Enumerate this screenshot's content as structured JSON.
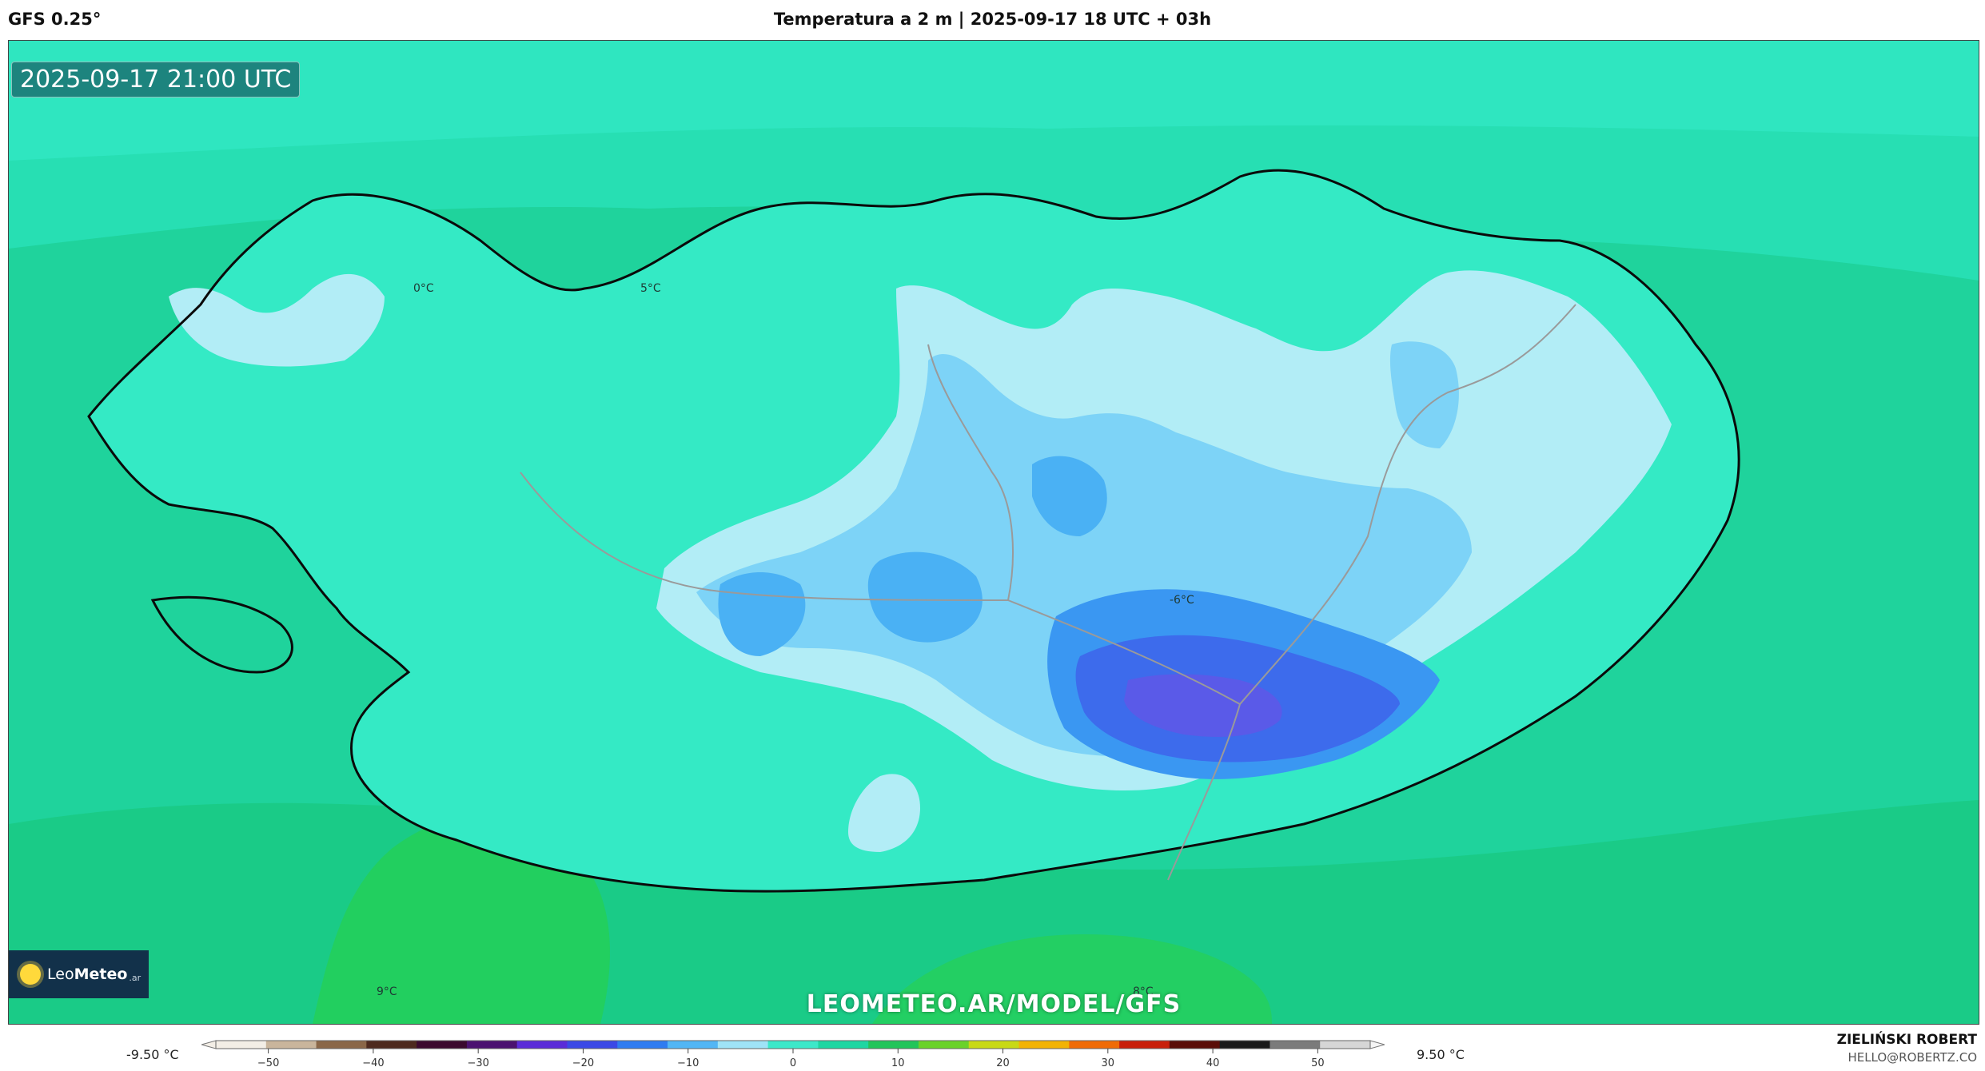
{
  "header": {
    "model": "GFS 0.25°",
    "title": "Temperatura a 2 m | 2025-09-17 18 UTC + 03h"
  },
  "map": {
    "timestamp": "2025-09-17 21:00 UTC",
    "website": "LEOMETEO.AR/MODEL/GFS",
    "logo": {
      "brand_light": "Leo",
      "brand_bold": "Meteo",
      "tld": ".ar",
      "icon": "sun-icon"
    },
    "contour_labels": [
      "0°C",
      "5°C",
      "-6°C",
      "9°C",
      "8°C"
    ]
  },
  "legend": {
    "min_label": "-9.50 °C",
    "max_label": "9.50 °C",
    "ticks": [
      "−50",
      "−40",
      "−30",
      "−20",
      "−10",
      "0",
      "10",
      "20",
      "30",
      "40",
      "50"
    ],
    "tick_values": [
      -50,
      -40,
      -30,
      -20,
      -10,
      0,
      10,
      20,
      30,
      40,
      50
    ],
    "range": [
      -55,
      55
    ],
    "colors": [
      "#f3eee6",
      "#c9b59c",
      "#8a6748",
      "#4d2a1e",
      "#3b0a2e",
      "#4b1270",
      "#5a2cd8",
      "#3b49e6",
      "#2f7cf1",
      "#52b6f5",
      "#9fe3f7",
      "#3de8c9",
      "#1ed6a2",
      "#22c55a",
      "#6ad22a",
      "#c8d915",
      "#f2b305",
      "#ef6b06",
      "#c81f0a",
      "#5a0e08",
      "#1a1a1a",
      "#7b7b7b",
      "#d6d6d6"
    ],
    "fill_colors": {
      "sea_warm": "#1bd093",
      "sea": "#25dfb0",
      "land_low": "#33ebc5",
      "light_cyan": "#b2edf6",
      "light_blue": "#7dd3f7",
      "medium_blue": "#4ab1f4",
      "blue": "#2f8cf0",
      "deep_blue": "#3d6bec",
      "purple_blue": "#5a5ae8",
      "green_south": "#22cf5f"
    }
  },
  "footer": {
    "author": "ZIELIŃSKI ROBERT",
    "email": "HELLO@ROBERTZ.CO"
  }
}
